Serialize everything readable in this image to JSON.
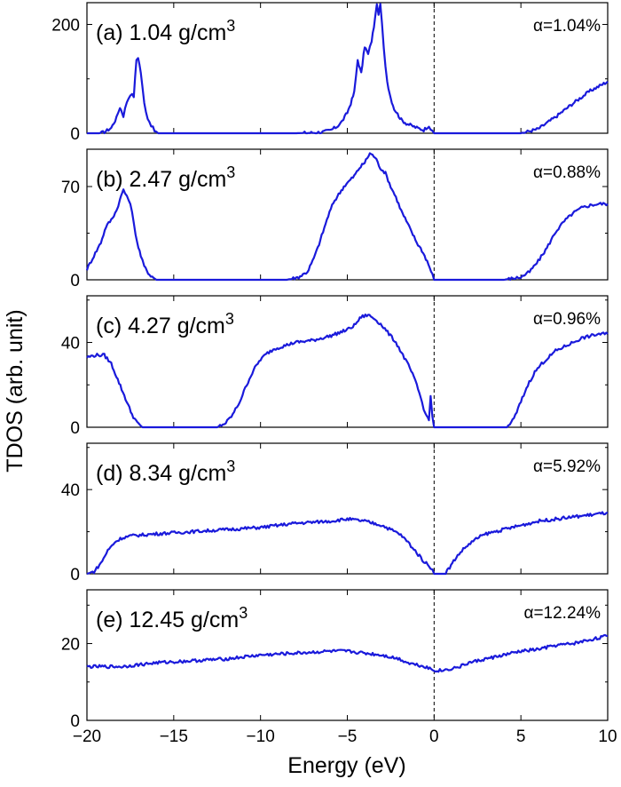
{
  "figure": {
    "xlabel": "Energy (eV)",
    "ylabel": "TDOS (arb. unit)",
    "line_color": "#1a1adb"
  },
  "chart_data": [
    {
      "type": "line",
      "panel": "(a)",
      "title": "1.04 g/cm",
      "title_sup": "3",
      "annotation": "α=1.04%",
      "xlim": [
        -20,
        10
      ],
      "ylim": [
        0,
        240
      ],
      "yticks": [
        0,
        200
      ],
      "xticks": [
        -20,
        -15,
        -10,
        -5,
        0,
        5,
        10
      ],
      "fermi_level": 0,
      "series": [
        {
          "name": "TDOS",
          "x": [
            -20,
            -19.3,
            -19,
            -18.6,
            -18.3,
            -18.1,
            -17.9,
            -17.7,
            -17.5,
            -17.3,
            -17.15,
            -17.05,
            -16.9,
            -16.7,
            -16.5,
            -16.3,
            -16.1,
            -15.9,
            -14,
            -10,
            -8,
            -7,
            -6.5,
            -6,
            -5.6,
            -5.3,
            -5,
            -4.8,
            -4.6,
            -4.4,
            -4.2,
            -4.0,
            -3.8,
            -3.6,
            -3.4,
            -3.3,
            -3.2,
            -3.1,
            -3.0,
            -2.9,
            -2.7,
            -2.5,
            -2.3,
            -2.1,
            -1.9,
            -1.6,
            -1.3,
            -1.0,
            -0.6,
            -0.3,
            -0.1,
            0,
            0.3,
            1,
            3,
            5,
            6,
            7,
            8,
            9,
            10
          ],
          "y": [
            0,
            0,
            2,
            10,
            28,
            48,
            32,
            58,
            72,
            68,
            135,
            140,
            112,
            55,
            28,
            15,
            4,
            0,
            0,
            0,
            0,
            1,
            2,
            5,
            12,
            22,
            38,
            55,
            75,
            135,
            110,
            160,
            145,
            170,
            210,
            240,
            215,
            238,
            200,
            155,
            95,
            65,
            45,
            35,
            25,
            18,
            14,
            10,
            6,
            14,
            2,
            0,
            0,
            0,
            0,
            0,
            8,
            30,
            55,
            78,
            95
          ]
        }
      ]
    },
    {
      "type": "line",
      "panel": "(b)",
      "title": "2.47 g/cm",
      "title_sup": "3",
      "annotation": "α=0.88%",
      "xlim": [
        -20,
        10
      ],
      "ylim": [
        0,
        98
      ],
      "yticks": [
        0,
        70
      ],
      "xticks": [
        -20,
        -15,
        -10,
        -5,
        0,
        5,
        10
      ],
      "fermi_level": 0,
      "series": [
        {
          "name": "TDOS",
          "x": [
            -20,
            -19.6,
            -19.2,
            -18.9,
            -18.6,
            -18.3,
            -18.1,
            -17.9,
            -17.7,
            -17.5,
            -17.3,
            -17.1,
            -16.9,
            -16.7,
            -16.4,
            -16.0,
            -15,
            -12,
            -10,
            -8.5,
            -7.8,
            -7.3,
            -7.0,
            -6.7,
            -6.4,
            -6.1,
            -5.8,
            -5.5,
            -5.2,
            -4.9,
            -4.6,
            -4.3,
            -4.0,
            -3.7,
            -3.4,
            -3.1,
            -2.8,
            -2.5,
            -2.2,
            -1.9,
            -1.6,
            -1.3,
            -1.0,
            -0.7,
            -0.4,
            -0.1,
            0,
            0.5,
            2,
            4,
            5,
            5.5,
            6,
            6.5,
            7,
            7.5,
            8,
            8.5,
            9,
            9.5,
            10
          ],
          "y": [
            8,
            18,
            28,
            40,
            45,
            52,
            60,
            68,
            62,
            58,
            42,
            28,
            18,
            10,
            4,
            0,
            0,
            0,
            0,
            0,
            2,
            6,
            14,
            24,
            36,
            48,
            58,
            64,
            70,
            74,
            78,
            84,
            88,
            95,
            92,
            84,
            80,
            70,
            62,
            52,
            44,
            36,
            28,
            22,
            14,
            4,
            0,
            0,
            0,
            0,
            2,
            6,
            14,
            24,
            36,
            44,
            50,
            54,
            56,
            57,
            57
          ]
        }
      ]
    },
    {
      "type": "line",
      "panel": "(c)",
      "title": "4.27 g/cm",
      "title_sup": "3",
      "annotation": "α=0.96%",
      "xlim": [
        -20,
        10
      ],
      "ylim": [
        0,
        62
      ],
      "yticks": [
        0,
        40
      ],
      "xticks": [
        -20,
        -15,
        -10,
        -5,
        0,
        5,
        10
      ],
      "fermi_level": 0,
      "series": [
        {
          "name": "TDOS",
          "x": [
            -20,
            -19.5,
            -19,
            -18.6,
            -18.3,
            -18.0,
            -17.7,
            -17.4,
            -17.1,
            -16.8,
            -16.5,
            -16.0,
            -14,
            -12.5,
            -12.0,
            -11.6,
            -11.2,
            -10.8,
            -10.4,
            -10.0,
            -9.6,
            -9.2,
            -8.8,
            -8.4,
            -8.0,
            -7.0,
            -6.0,
            -5.0,
            -4.6,
            -4.2,
            -3.8,
            -3.4,
            -3.0,
            -2.6,
            -2.2,
            -1.8,
            -1.4,
            -1.0,
            -0.7,
            -0.5,
            -0.3,
            -0.2,
            -0.1,
            0,
            0.5,
            3,
            4.2,
            4.6,
            5.0,
            5.4,
            5.8,
            6.2,
            6.6,
            7.0,
            7.5,
            8.0,
            8.5,
            9.0,
            9.5,
            10
          ],
          "y": [
            33,
            34,
            34,
            30,
            24,
            18,
            12,
            6,
            2,
            0,
            0,
            0,
            0,
            0,
            2,
            6,
            12,
            20,
            27,
            32,
            35,
            37,
            38,
            39,
            40,
            41,
            43,
            46,
            48,
            52,
            53,
            51,
            48,
            44,
            40,
            34,
            28,
            20,
            12,
            6,
            4,
            14,
            5,
            0,
            0,
            0,
            0,
            4,
            12,
            20,
            26,
            30,
            33,
            36,
            38,
            40,
            42,
            43,
            44,
            44
          ]
        }
      ]
    },
    {
      "type": "line",
      "panel": "(d)",
      "title": "8.34 g/cm",
      "title_sup": "3",
      "annotation": "α=5.92%",
      "xlim": [
        -20,
        10
      ],
      "ylim": [
        0,
        62
      ],
      "yticks": [
        0,
        40
      ],
      "xticks": [
        -20,
        -15,
        -10,
        -5,
        0,
        5,
        10
      ],
      "fermi_level": 0,
      "series": [
        {
          "name": "TDOS",
          "x": [
            -20,
            -19.6,
            -19.2,
            -18.8,
            -18.4,
            -18.0,
            -17.5,
            -16,
            -14,
            -12,
            -10,
            -8,
            -6,
            -5,
            -4,
            -3,
            -2.5,
            -2.0,
            -1.5,
            -1.0,
            -0.6,
            -0.3,
            -0.1,
            0,
            0.6,
            0.9,
            1.2,
            1.6,
            2.0,
            2.5,
            3,
            4,
            5,
            6,
            7,
            8,
            9,
            10
          ],
          "y": [
            0,
            1,
            5,
            11,
            15,
            17,
            18,
            19,
            20,
            21,
            22,
            24,
            25,
            26,
            25,
            23,
            21,
            19,
            15,
            10,
            6,
            4,
            2,
            0,
            0,
            3,
            7,
            11,
            14,
            17,
            19,
            21,
            23,
            25,
            26,
            27,
            28,
            29
          ]
        }
      ]
    },
    {
      "type": "line",
      "panel": "(e)",
      "title": "12.45 g/cm",
      "title_sup": "3",
      "annotation": "α=12.24%",
      "xlim": [
        -20,
        10
      ],
      "ylim": [
        0,
        34
      ],
      "yticks": [
        0,
        20
      ],
      "xticks": [
        -20,
        -15,
        -10,
        -5,
        0,
        5,
        10
      ],
      "fermi_level": 0,
      "series": [
        {
          "name": "TDOS",
          "x": [
            -20,
            -18,
            -16,
            -14,
            -12,
            -10,
            -8,
            -6,
            -5,
            -4,
            -3,
            -2,
            -1.5,
            -1,
            -0.5,
            0,
            0.5,
            1,
            1.5,
            2,
            3,
            4,
            5,
            6,
            7,
            8,
            9,
            10
          ],
          "y": [
            14,
            14,
            15,
            15.5,
            16,
            17,
            17.5,
            18,
            18,
            17.5,
            17,
            16,
            15,
            14.5,
            14,
            13,
            13,
            13.5,
            14,
            15,
            16,
            17,
            18,
            18.5,
            19.5,
            20,
            21,
            22
          ]
        }
      ]
    }
  ]
}
